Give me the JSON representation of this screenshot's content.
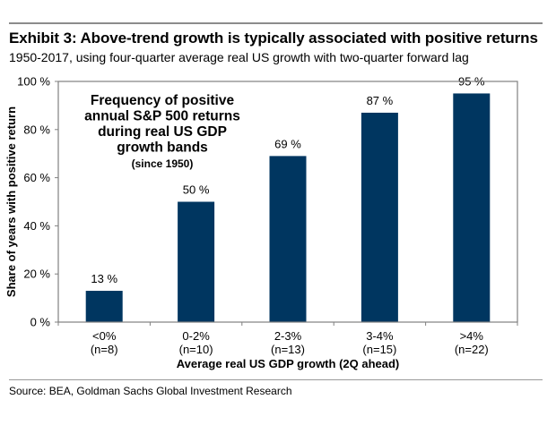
{
  "header": {
    "title": "Exhibit 3: Above-trend growth is typically associated with positive returns",
    "subtitle": "1950-2017, using four-quarter average real US growth with two-quarter forward lag"
  },
  "footer": {
    "source": "Source: BEA, Goldman Sachs Global Investment Research"
  },
  "chart_data": {
    "type": "bar",
    "title": "Exhibit 3: Above-trend growth is typically associated with positive returns",
    "subtitle": "1950-2017, using four-quarter average real US growth with two-quarter forward lag",
    "categories": [
      "<0%",
      "0-2%",
      "2-3%",
      "3-4%",
      ">4%"
    ],
    "category_counts": [
      "(n=8)",
      "(n=10)",
      "(n=13)",
      "(n=15)",
      "(n=22)"
    ],
    "values": [
      13,
      50,
      69,
      87,
      95
    ],
    "data_labels": [
      "13 %",
      "50 %",
      "69 %",
      "87 %",
      "95 %"
    ],
    "xlabel": "Average real US GDP growth (2Q ahead)",
    "ylabel": "Share of years with positive return",
    "ylim": [
      0,
      100
    ],
    "yticks": [
      0,
      20,
      40,
      60,
      80,
      100
    ],
    "ytick_labels": [
      "0 %",
      "20 %",
      "40 %",
      "60 %",
      "80 %",
      "100 %"
    ],
    "grid": false,
    "bar_color": "#003660",
    "annotation": {
      "lines": [
        "Frequency of positive",
        "annual S&P 500 returns",
        "during real US GDP",
        "growth bands"
      ],
      "sub": "(since 1950)",
      "placement": "top-left"
    },
    "source": "Source: BEA, Goldman Sachs Global Investment Research"
  }
}
